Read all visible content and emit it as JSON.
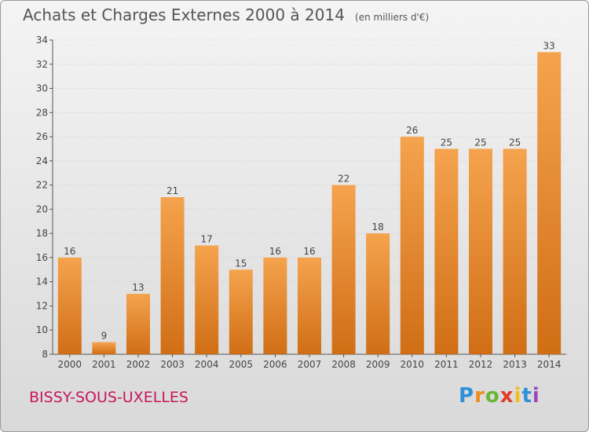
{
  "title": "Achats et Charges Externes 2000 à 2014",
  "unit": "(en milliers d'€)",
  "commune": "BISSY-SOUS-UXELLES",
  "brand": "Proxiti",
  "colors": {
    "bar_top": "#f5a34e",
    "bar_bottom": "#d06e15",
    "commune": "#c8175a",
    "text": "#555555"
  },
  "chart_data": {
    "type": "bar",
    "categories": [
      "2000",
      "2001",
      "2002",
      "2003",
      "2004",
      "2005",
      "2006",
      "2007",
      "2008",
      "2009",
      "2010",
      "2011",
      "2012",
      "2013",
      "2014"
    ],
    "values": [
      16,
      9,
      13,
      21,
      17,
      15,
      16,
      16,
      22,
      18,
      26,
      25,
      25,
      25,
      33
    ],
    "ylim": [
      8,
      34
    ],
    "yticks": [
      8,
      10,
      12,
      14,
      16,
      18,
      20,
      22,
      24,
      26,
      28,
      30,
      32,
      34
    ],
    "grid": true
  }
}
